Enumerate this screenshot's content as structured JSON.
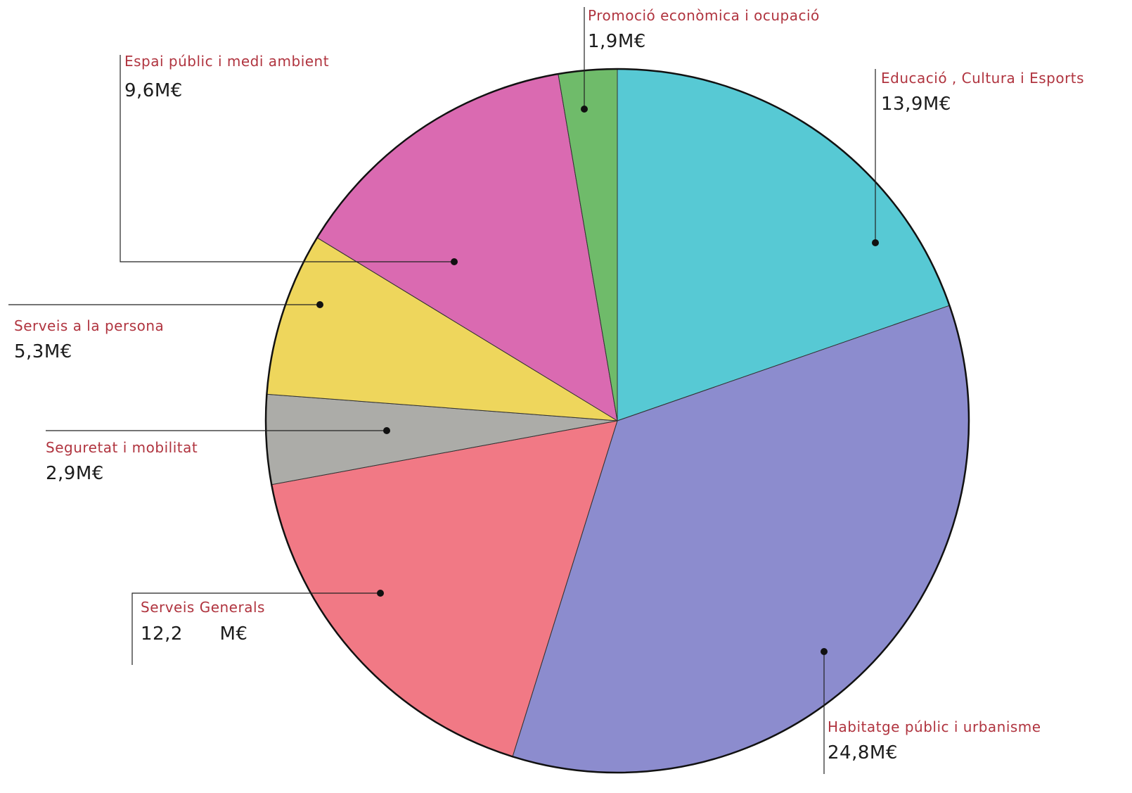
{
  "chart_data": {
    "type": "pie",
    "categories": [
      "Educació , Cultura i Esports",
      "Habitatge públic i urbanisme",
      "Serveis Generals",
      "Seguretat i mobilitat",
      "Serveis a la persona",
      "Espai públic i medi ambient",
      "Promoció econòmica i ocupació"
    ],
    "values": [
      13.9,
      24.8,
      12.2,
      2.9,
      5.3,
      9.6,
      1.9
    ],
    "value_labels": [
      "13,9M€",
      "24,8M€",
      "12,2      M€",
      "2,9M€",
      "5,3M€",
      "9,6M€",
      "1,9M€"
    ],
    "colors": [
      "#45c3cf",
      "#7f7fc9",
      "#ef6a78",
      "#a3a39f",
      "#ecd24a",
      "#d65aa9",
      "#5fb45a"
    ]
  }
}
